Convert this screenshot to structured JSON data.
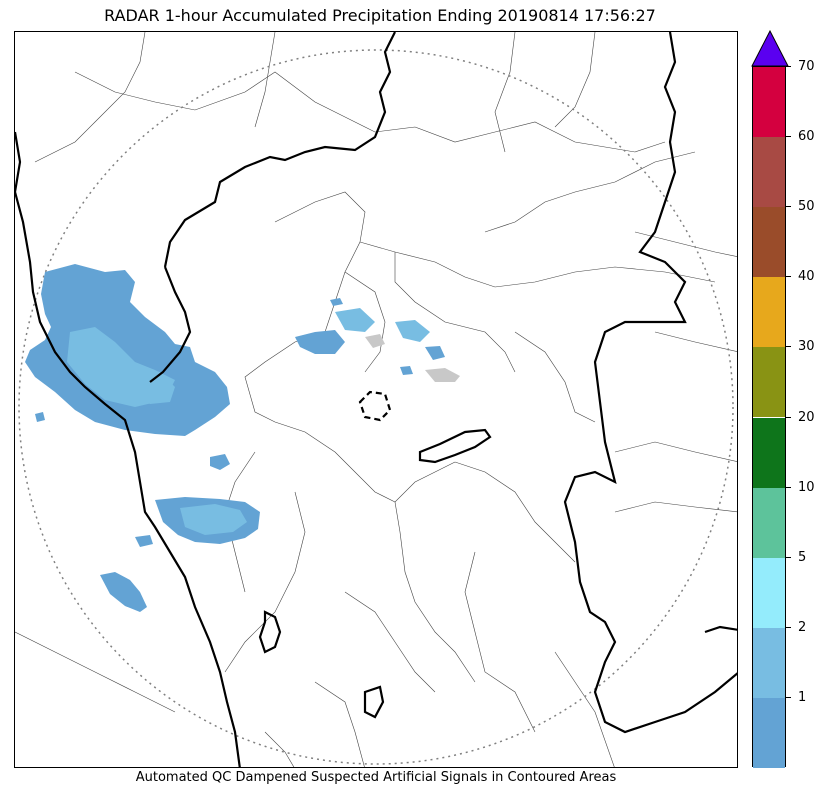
{
  "title": "RADAR 1-hour Accumulated Precipitation Ending 20190814 17:56:27",
  "footer": "Automated QC Dampened Suspected Artificial Signals in Contoured Areas",
  "colors": {
    "coastline": "#000000",
    "district_border": "#333333",
    "range_ring": "#808080",
    "precip_base": "#63a3d4",
    "precip_light": "#78bde2",
    "precip_cyan": "#94ecfc",
    "qc_grey": "#c8c8c8"
  },
  "colorbar": {
    "extend_color": "#5a00f0",
    "segments": [
      {
        "color": "#63a3d4"
      },
      {
        "color": "#78bde2"
      },
      {
        "color": "#94ecfc"
      },
      {
        "color": "#5dc39b"
      },
      {
        "color": "#0e751b"
      },
      {
        "color": "#899314"
      },
      {
        "color": "#e7a81c"
      },
      {
        "color": "#9a4c2a"
      },
      {
        "color": "#a84a44"
      },
      {
        "color": "#d4003f"
      }
    ],
    "tick_labels": [
      "1",
      "2",
      "5",
      "10",
      "20",
      "30",
      "40",
      "50",
      "60",
      "70"
    ]
  }
}
